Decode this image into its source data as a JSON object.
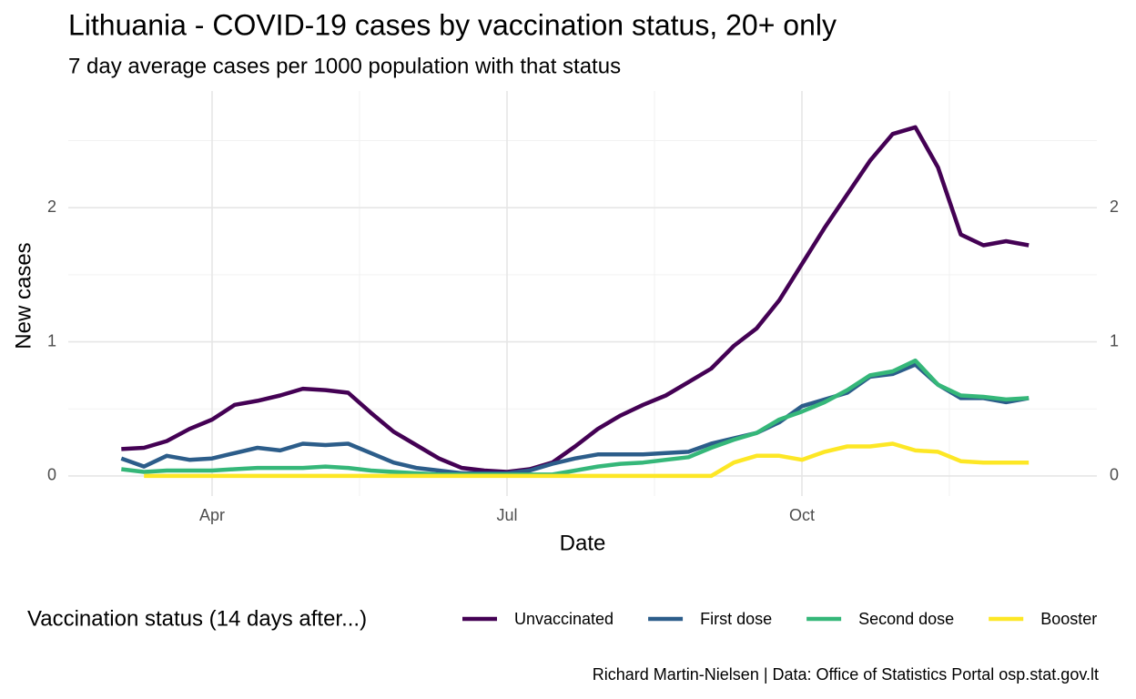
{
  "chart_data": {
    "type": "line",
    "title": "Lithuania - COVID-19 cases by vaccination status, 20+ only",
    "subtitle": "7 day average cases per 1000 population with that status",
    "x_label": "Date",
    "y_label": "New cases",
    "legend_title": "Vaccination status (14 days after...)",
    "caption": "Richard Martin-Nielsen | Data: Office of Statistics Portal osp.stat.gov.lt",
    "categories": [
      null,
      null,
      null,
      null,
      "Apr",
      null,
      null,
      null,
      null,
      null,
      null,
      null,
      null,
      null,
      null,
      null,
      null,
      "Jul",
      null,
      null,
      null,
      null,
      null,
      null,
      null,
      null,
      null,
      null,
      null,
      null,
      "Oct",
      null,
      null,
      null,
      null,
      null,
      null,
      null,
      null,
      null,
      null
    ],
    "ylim": [
      -0.15,
      2.87
    ],
    "yticks": [
      0,
      1,
      2
    ],
    "y2lim": [
      -0.15,
      2.87
    ],
    "y2ticks": [
      0,
      1,
      2
    ],
    "grid": true,
    "legend": "bottom",
    "series": [
      {
        "name": "Unvaccinated",
        "color": "#440154",
        "values": [
          0.2,
          0.21,
          0.26,
          0.35,
          0.42,
          0.53,
          0.56,
          0.6,
          0.65,
          0.64,
          0.62,
          0.47,
          0.33,
          0.23,
          0.13,
          0.06,
          0.04,
          0.03,
          0.05,
          0.1,
          0.22,
          0.35,
          0.45,
          0.53,
          0.6,
          0.7,
          0.8,
          0.97,
          1.1,
          1.31,
          1.58,
          1.85,
          2.1,
          2.35,
          2.55,
          2.6,
          2.3,
          1.8,
          1.72,
          1.75,
          1.72
        ]
      },
      {
        "name": "First dose",
        "color": "#2c5d8a",
        "values": [
          0.13,
          0.07,
          0.15,
          0.12,
          0.13,
          0.17,
          0.21,
          0.19,
          0.24,
          0.23,
          0.24,
          0.17,
          0.1,
          0.06,
          0.04,
          0.02,
          0.02,
          0.02,
          0.04,
          0.09,
          0.13,
          0.16,
          0.16,
          0.16,
          0.17,
          0.18,
          0.24,
          0.28,
          0.32,
          0.4,
          0.52,
          0.57,
          0.62,
          0.74,
          0.76,
          0.83,
          0.68,
          0.58,
          0.58,
          0.55,
          0.58
        ]
      },
      {
        "name": "Second dose",
        "color": "#35b779",
        "values": [
          0.05,
          0.03,
          0.04,
          0.04,
          0.04,
          0.05,
          0.06,
          0.06,
          0.06,
          0.07,
          0.06,
          0.04,
          0.03,
          0.02,
          0.01,
          0.01,
          0.01,
          0.01,
          0.01,
          0.01,
          0.04,
          0.07,
          0.09,
          0.1,
          0.12,
          0.14,
          0.21,
          0.27,
          0.32,
          0.42,
          0.48,
          0.55,
          0.64,
          0.75,
          0.78,
          0.86,
          0.68,
          0.6,
          0.59,
          0.57,
          0.58
        ]
      },
      {
        "name": "Booster",
        "color": "#fde725",
        "values": [
          null,
          0,
          0,
          0,
          0,
          0,
          0,
          0,
          0,
          0,
          0,
          0,
          0,
          0,
          0,
          0,
          0,
          0,
          0,
          0,
          0,
          0,
          0,
          0,
          0,
          0,
          0,
          0.1,
          0.15,
          0.15,
          0.12,
          0.18,
          0.22,
          0.22,
          0.24,
          0.19,
          0.18,
          0.11,
          0.1,
          0.1,
          0.1
        ]
      }
    ]
  }
}
